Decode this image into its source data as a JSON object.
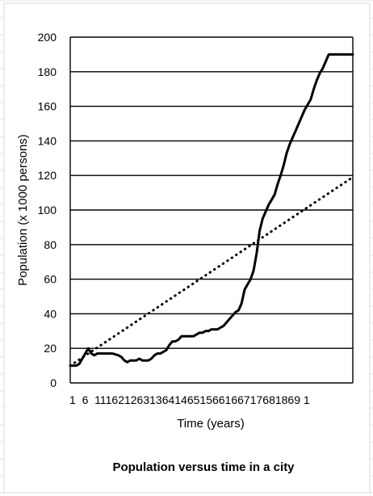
{
  "chart_data": {
    "type": "line",
    "title": "Population versus time in a city",
    "xlabel": "Time (years)",
    "ylabel": "Population (x 1000 persons)",
    "ylim": [
      0,
      200
    ],
    "yticks": [
      0,
      20,
      40,
      60,
      80,
      100,
      120,
      140,
      160,
      180,
      200
    ],
    "xlim": [
      1,
      95
    ],
    "xtick_label_text": "1  6  111621263136414651566166717681869 1",
    "xtick_labels": [
      "1",
      "6",
      "11",
      "16",
      "21",
      "26",
      "31",
      "36",
      "41",
      "46",
      "51",
      "56",
      "61",
      "66",
      "71",
      "76",
      "81",
      "86",
      "91"
    ],
    "grid": "horizontal",
    "legend": "none",
    "series": [
      {
        "style": "solid",
        "color": "#000000",
        "x": [
          1,
          3,
          4,
          5,
          6,
          7,
          8,
          9,
          10,
          11,
          13,
          15,
          17,
          18,
          19,
          20,
          21,
          22,
          23,
          24,
          25,
          26,
          27,
          28,
          29,
          30,
          31,
          32,
          33,
          34,
          35,
          36,
          37,
          38,
          39,
          40,
          41,
          42,
          43,
          44,
          45,
          46,
          47,
          48,
          49,
          50,
          51,
          52,
          53,
          54,
          55,
          56,
          57,
          58,
          59,
          60,
          61,
          62,
          63,
          64,
          65,
          66,
          67,
          68,
          69,
          70,
          71,
          72,
          73,
          74,
          75,
          76,
          77,
          78,
          79,
          80,
          81,
          82,
          83,
          84,
          85,
          86,
          87,
          88,
          89,
          90,
          91,
          92,
          93,
          94,
          95
        ],
        "y": [
          10,
          10,
          11,
          14,
          17,
          20,
          17,
          16,
          17,
          17,
          17,
          17,
          16,
          15,
          13,
          12,
          13,
          13,
          13,
          14,
          13,
          13,
          13,
          14,
          16,
          17,
          17,
          18,
          19,
          22,
          24,
          24,
          25,
          27,
          27,
          27,
          27,
          27,
          28,
          29,
          29,
          30,
          30,
          31,
          31,
          31,
          32,
          33,
          35,
          37,
          39,
          41,
          42,
          46,
          54,
          57,
          60,
          65,
          75,
          88,
          95,
          99,
          103,
          106,
          109,
          115,
          120,
          126,
          133,
          138,
          142,
          146,
          150,
          154,
          158,
          161,
          164,
          170,
          175,
          179,
          182,
          186,
          190,
          190,
          190,
          190,
          190,
          190,
          190,
          190,
          190
        ]
      },
      {
        "style": "dotted",
        "color": "#000000",
        "x": [
          1,
          95
        ],
        "y": [
          10,
          119
        ]
      }
    ]
  }
}
